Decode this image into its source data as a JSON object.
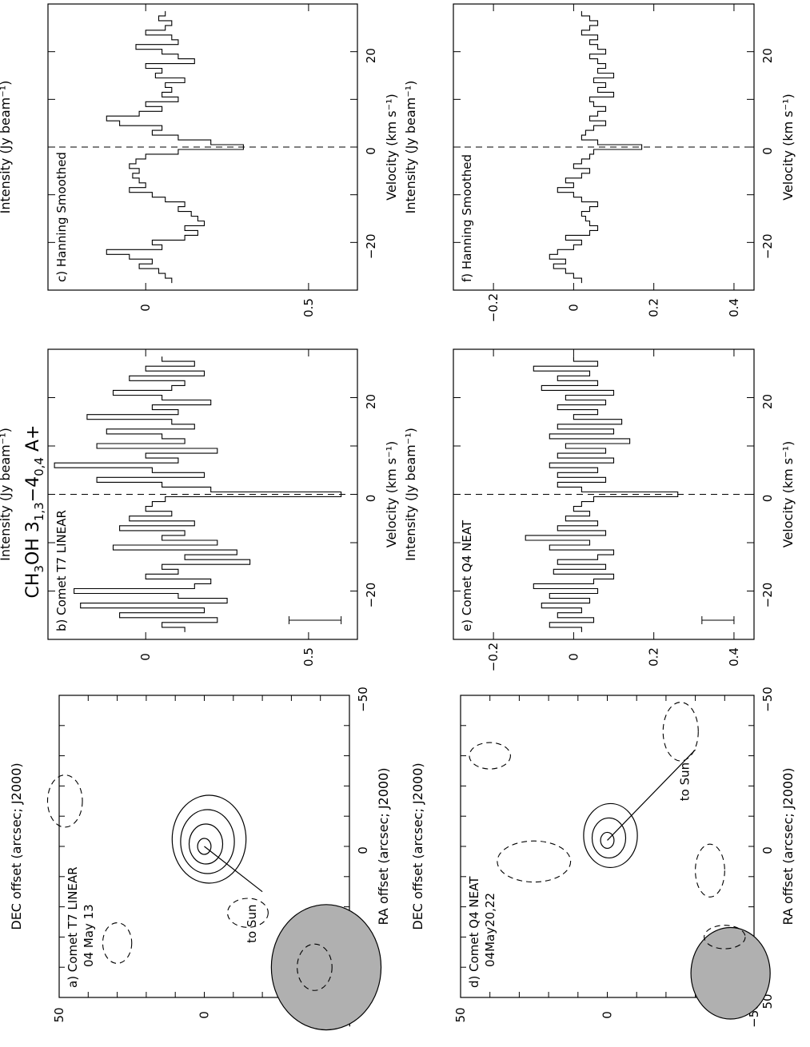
{
  "figure": {
    "title": "CH3OH 3(1,3)−4(0,4) A+",
    "title_parts": {
      "base": "CH",
      "sub1": "3",
      "mid": "OH 3",
      "sub2": "1,3",
      "dash": "−4",
      "sub3": "0,4",
      "end": " A+"
    }
  },
  "chart_data": [
    {
      "id": "a",
      "type": "contour",
      "panel_label": "a)  Comet T7 LINEAR",
      "date_label": "04 May 13",
      "annotation": "to Sun",
      "xlabel": "RA offset (arcsec; J2000)",
      "ylabel": "DEC offset (arcsec; J2000)",
      "xlim": [
        50,
        -50
      ],
      "ylim": [
        -50,
        50
      ],
      "xticks": [
        "50",
        "0",
        "−50"
      ],
      "yticks": [
        "50",
        "0",
        "−50"
      ],
      "beam": {
        "ra": 40,
        "dec": -42,
        "major_arcsec": 21,
        "minor_arcsec": 18
      },
      "peak": {
        "ra": 0,
        "dec": 0
      },
      "sun_direction": {
        "ra": 15,
        "dec": -20
      },
      "solid_contours": 4,
      "colors": {
        "beam": "#b0b0b0",
        "line": "#000000"
      }
    },
    {
      "id": "b",
      "type": "line",
      "style": "histogram",
      "panel_label": "b)  Comet T7 LINEAR",
      "xlabel": "Velocity (km s⁻¹)",
      "ylabel": "Intensity (Jy beam⁻¹)",
      "xlim": [
        -30,
        30
      ],
      "ylim": [
        -0.3,
        0.65
      ],
      "xticks": [
        "−20",
        "0",
        "20"
      ],
      "yticks": [
        "0.5",
        "0"
      ],
      "error_bar": 0.08,
      "x": [
        -28,
        -27,
        -26,
        -25,
        -24,
        -23,
        -22,
        -21,
        -20,
        -19,
        -18,
        -17,
        -16,
        -15,
        -14,
        -13,
        -12,
        -11,
        -10,
        -9,
        -8,
        -7,
        -6,
        -5,
        -4,
        -3,
        -2,
        -1,
        0,
        1,
        2,
        3,
        4,
        5,
        6,
        7,
        8,
        9,
        10,
        11,
        12,
        13,
        14,
        15,
        16,
        17,
        18,
        19,
        20,
        21,
        22,
        23,
        24,
        25,
        26,
        27,
        28
      ],
      "values": [
        0.12,
        0.05,
        0.22,
        -0.08,
        0.18,
        -0.2,
        0.25,
        0.1,
        -0.22,
        0.15,
        0.2,
        0.0,
        0.1,
        0.05,
        0.32,
        0.12,
        0.28,
        -0.1,
        0.22,
        0.05,
        0.12,
        -0.08,
        0.15,
        -0.05,
        0.08,
        0.0,
        0.02,
        0.06,
        0.6,
        0.2,
        0.05,
        -0.15,
        0.18,
        0.02,
        -0.28,
        0.1,
        0.0,
        0.22,
        -0.15,
        0.12,
        0.05,
        -0.12,
        0.15,
        0.08,
        -0.18,
        0.1,
        0.02,
        0.2,
        0.05,
        -0.1,
        0.08,
        0.12,
        -0.05,
        0.18,
        0.0,
        0.15,
        0.05
      ]
    },
    {
      "id": "c",
      "type": "line",
      "style": "histogram",
      "panel_label": "c)  Hanning Smoothed",
      "xlabel": "Velocity (km s⁻¹)",
      "ylabel": "Intensity (Jy beam⁻¹)",
      "xlim": [
        -30,
        30
      ],
      "ylim": [
        -0.3,
        0.65
      ],
      "xticks": [
        "−20",
        "0",
        "20"
      ],
      "yticks": [
        "0.5",
        "0"
      ],
      "x": [
        -28,
        -27,
        -26,
        -25,
        -24,
        -23,
        -22,
        -21,
        -20,
        -19,
        -18,
        -17,
        -16,
        -15,
        -14,
        -13,
        -12,
        -11,
        -10,
        -9,
        -8,
        -7,
        -6,
        -5,
        -4,
        -3,
        -2,
        -1,
        0,
        1,
        2,
        3,
        4,
        5,
        6,
        7,
        8,
        9,
        10,
        11,
        12,
        13,
        14,
        15,
        16,
        17,
        18,
        19,
        20,
        21,
        22,
        23,
        24,
        25,
        26,
        27,
        28
      ],
      "values": [
        0.08,
        0.06,
        0.04,
        -0.02,
        0.02,
        -0.05,
        -0.12,
        0.05,
        0.02,
        0.12,
        0.16,
        0.12,
        0.18,
        0.16,
        0.14,
        0.1,
        0.12,
        0.06,
        0.02,
        -0.05,
        0.0,
        -0.02,
        -0.04,
        -0.02,
        -0.05,
        -0.03,
        0.0,
        0.1,
        0.3,
        0.2,
        0.1,
        0.02,
        0.05,
        -0.08,
        -0.12,
        -0.02,
        0.05,
        0.0,
        0.1,
        0.05,
        0.08,
        0.06,
        0.12,
        0.03,
        0.05,
        0.0,
        0.15,
        0.1,
        0.05,
        -0.03,
        0.1,
        0.08,
        0.0,
        0.06,
        0.08,
        0.04,
        0.06
      ]
    },
    {
      "id": "d",
      "type": "contour",
      "panel_label": "d)  Comet Q4 NEAT",
      "date_label": "04May20,22",
      "annotation": "to Sun",
      "xlabel": "RA offset (arcsec; J2000)",
      "ylabel": "DEC offset (arcsec; J2000)",
      "xlim": [
        50,
        -50
      ],
      "ylim": [
        -50,
        50
      ],
      "xticks": [
        "50",
        "0",
        "−50"
      ],
      "yticks": [
        "50",
        "0",
        "−50"
      ],
      "beam": {
        "ra": 42,
        "dec": -42,
        "major_arcsec": 15,
        "minor_arcsec": 13
      },
      "peak": {
        "ra": -2,
        "dec": 0
      },
      "sun_direction": {
        "ra": -30,
        "dec": -30
      },
      "solid_contours": 3,
      "colors": {
        "beam": "#b0b0b0",
        "line": "#000000"
      }
    },
    {
      "id": "e",
      "type": "line",
      "style": "histogram",
      "panel_label": "e)  Comet Q4 NEAT",
      "xlabel": "Velocity (km s⁻¹)",
      "ylabel": "Intensity (Jy beam⁻¹)",
      "xlim": [
        -30,
        30
      ],
      "ylim": [
        -0.3,
        0.45
      ],
      "xticks": [
        "−20",
        "0",
        "20"
      ],
      "yticks": [
        "0.4",
        "0.2",
        "0",
        "−0.2"
      ],
      "error_bar": 0.04,
      "x": [
        -28,
        -27,
        -26,
        -25,
        -24,
        -23,
        -22,
        -21,
        -20,
        -19,
        -18,
        -17,
        -16,
        -15,
        -14,
        -13,
        -12,
        -11,
        -10,
        -9,
        -8,
        -7,
        -6,
        -5,
        -4,
        -3,
        -2,
        -1,
        0,
        1,
        2,
        3,
        4,
        5,
        6,
        7,
        8,
        9,
        10,
        11,
        12,
        13,
        14,
        15,
        16,
        17,
        18,
        19,
        20,
        21,
        22,
        23,
        24,
        25,
        26,
        27,
        28
      ],
      "values": [
        0.02,
        -0.06,
        0.05,
        -0.04,
        0.02,
        -0.08,
        0.04,
        -0.06,
        0.06,
        -0.1,
        0.05,
        0.1,
        -0.05,
        0.08,
        -0.04,
        0.06,
        0.1,
        -0.06,
        0.04,
        -0.12,
        0.08,
        -0.04,
        0.06,
        -0.02,
        0.04,
        0.0,
        0.02,
        0.05,
        0.26,
        0.02,
        -0.04,
        0.08,
        -0.04,
        0.06,
        -0.06,
        0.1,
        -0.04,
        0.08,
        -0.02,
        0.14,
        -0.06,
        0.1,
        -0.04,
        0.12,
        0.0,
        0.06,
        -0.04,
        0.08,
        -0.02,
        0.1,
        -0.08,
        0.06,
        -0.04,
        0.04,
        -0.1,
        0.06,
        0.0
      ]
    },
    {
      "id": "f",
      "type": "line",
      "style": "histogram",
      "panel_label": "f)  Hanning Smoothed",
      "xlabel": "Velocity (km s⁻¹)",
      "ylabel": "Intensity (Jy beam⁻¹)",
      "xlim": [
        -30,
        30
      ],
      "ylim": [
        -0.3,
        0.45
      ],
      "xticks": [
        "−20",
        "0",
        "20"
      ],
      "yticks": [
        "0.4",
        "0.2",
        "0",
        "−0.2"
      ],
      "x": [
        -28,
        -27,
        -26,
        -25,
        -24,
        -23,
        -22,
        -21,
        -20,
        -19,
        -18,
        -17,
        -16,
        -15,
        -14,
        -13,
        -12,
        -11,
        -10,
        -9,
        -8,
        -7,
        -6,
        -5,
        -4,
        -3,
        -2,
        -1,
        0,
        1,
        2,
        3,
        4,
        5,
        6,
        7,
        8,
        9,
        10,
        11,
        12,
        13,
        14,
        15,
        16,
        17,
        18,
        19,
        20,
        21,
        22,
        23,
        24,
        25,
        26,
        27,
        28
      ],
      "values": [
        0.02,
        0.0,
        -0.02,
        -0.05,
        -0.02,
        -0.06,
        -0.04,
        0.0,
        0.02,
        -0.02,
        0.04,
        0.06,
        0.04,
        0.03,
        0.02,
        0.04,
        0.06,
        0.02,
        0.0,
        -0.04,
        0.0,
        -0.02,
        0.02,
        0.04,
        0.0,
        0.02,
        0.04,
        0.05,
        0.17,
        0.06,
        0.02,
        0.03,
        0.05,
        0.08,
        0.04,
        0.06,
        0.08,
        0.05,
        0.04,
        0.1,
        0.06,
        0.08,
        0.05,
        0.1,
        0.06,
        0.08,
        0.06,
        0.04,
        0.08,
        0.06,
        0.04,
        0.06,
        0.02,
        0.04,
        0.06,
        0.04,
        0.02
      ]
    }
  ]
}
